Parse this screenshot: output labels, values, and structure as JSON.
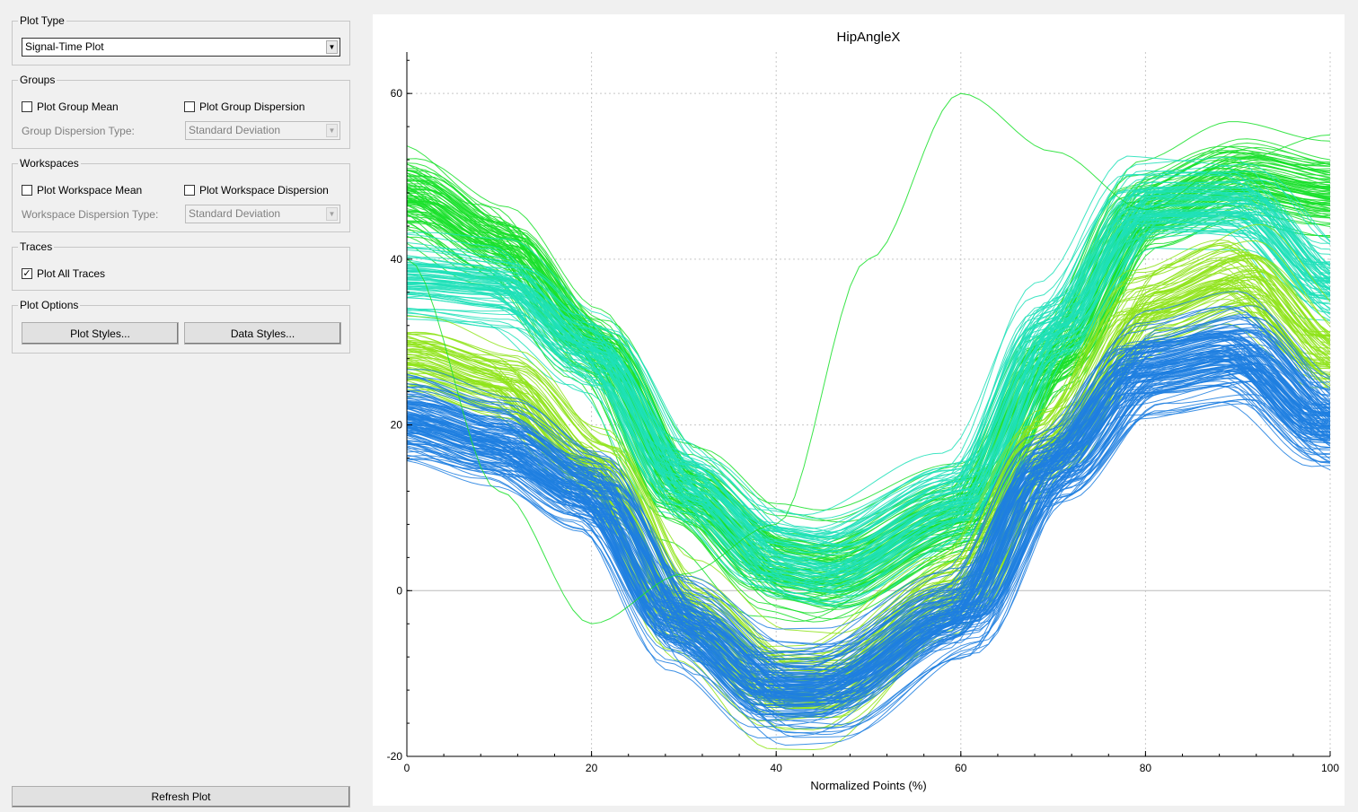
{
  "sidebar": {
    "plot_type": {
      "title": "Plot Type",
      "selected": "Signal-Time Plot"
    },
    "groups": {
      "title": "Groups",
      "mean_label": "Plot Group Mean",
      "mean_checked": false,
      "dispersion_label": "Plot Group Dispersion",
      "dispersion_checked": false,
      "dispersion_type_label": "Group Dispersion Type:",
      "dispersion_type_value": "Standard Deviation"
    },
    "workspaces": {
      "title": "Workspaces",
      "mean_label": "Plot Workspace Mean",
      "mean_checked": false,
      "dispersion_label": "Plot Workspace Dispersion",
      "dispersion_checked": false,
      "dispersion_type_label": "Workspace Dispersion Type:",
      "dispersion_type_value": "Standard Deviation"
    },
    "traces": {
      "title": "Traces",
      "all_label": "Plot All Traces",
      "all_checked": true
    },
    "plot_options": {
      "title": "Plot Options",
      "styles_button": "Plot Styles...",
      "data_button": "Data Styles..."
    },
    "refresh_button": "Refresh Plot"
  },
  "colors": {
    "green": "#19e02a",
    "teal": "#1fe0b8",
    "lime": "#8fe41a",
    "blue": "#1e7fe0",
    "grid": "#c8c8c8",
    "axis": "#000000"
  },
  "chart_data": {
    "type": "line",
    "title": "HipAngleX",
    "xlabel": "Normalized Points (%)",
    "ylabel": "",
    "xlim": [
      0,
      100
    ],
    "ylim": [
      -20,
      65
    ],
    "xticks": [
      0,
      20,
      40,
      60,
      80,
      100
    ],
    "yticks": [
      -20,
      0,
      20,
      40,
      60
    ],
    "grid": true,
    "series": [
      {
        "color": "#19e02a",
        "count": 90,
        "x": [
          0,
          10,
          20,
          30,
          40,
          45,
          60,
          70,
          80,
          90,
          100
        ],
        "values": [
          48,
          42,
          30,
          12,
          3,
          2,
          9,
          28,
          46,
          50,
          48
        ]
      },
      {
        "color": "#1fe0b8",
        "count": 80,
        "x": [
          0,
          10,
          20,
          30,
          40,
          45,
          60,
          70,
          80,
          90,
          100
        ],
        "values": [
          38,
          37,
          29,
          13,
          4,
          3,
          11,
          32,
          47,
          47,
          37
        ]
      },
      {
        "color": "#8fe41a",
        "count": 70,
        "x": [
          0,
          10,
          20,
          30,
          40,
          45,
          60,
          70,
          80,
          90,
          100
        ],
        "values": [
          28,
          25,
          15,
          -3,
          -12,
          -12,
          0,
          18,
          34,
          38,
          28
        ]
      },
      {
        "color": "#1e7fe0",
        "count": 130,
        "x": [
          0,
          10,
          20,
          30,
          40,
          45,
          60,
          70,
          80,
          90,
          100
        ],
        "values": [
          21,
          18,
          12,
          -4,
          -12,
          -12,
          -3,
          15,
          27,
          29,
          20
        ]
      },
      {
        "color": "#19e02a",
        "count": 1,
        "x": [
          0,
          10,
          20,
          30,
          40,
          50,
          60,
          70,
          80,
          90,
          100
        ],
        "values": [
          40,
          12,
          -4,
          2,
          8,
          40,
          60,
          53,
          46,
          52,
          55
        ]
      }
    ]
  }
}
